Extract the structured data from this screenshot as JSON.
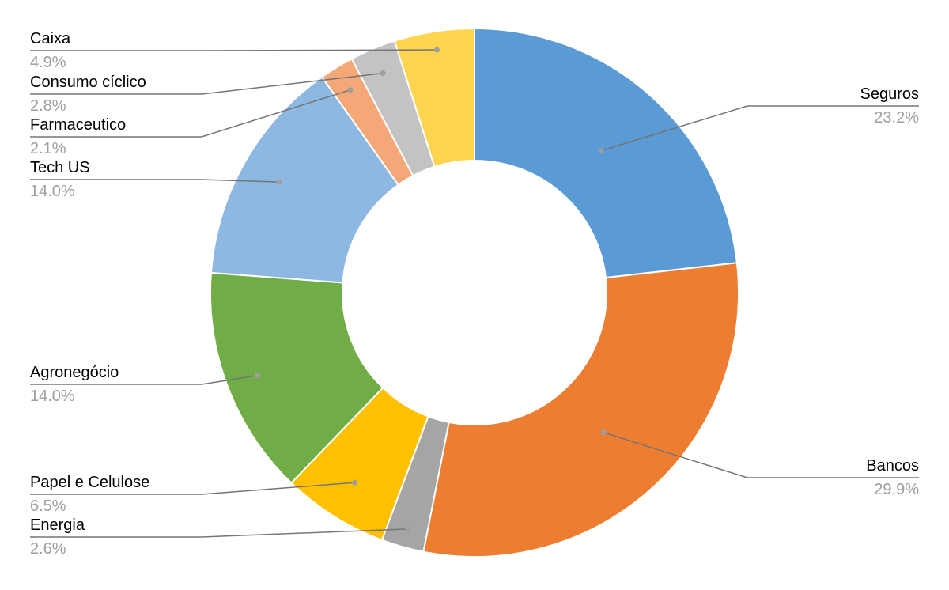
{
  "chart_data": {
    "type": "pie",
    "variant": "donut",
    "title": "",
    "start_angle_deg": 0,
    "direction": "clockwise",
    "legend": "none",
    "slices": [
      {
        "name": "Seguros",
        "value": 23.2,
        "label": "23.2%",
        "color": "#5b9bd5"
      },
      {
        "name": "Bancos",
        "value": 29.9,
        "label": "29.9%",
        "color": "#ed7d31"
      },
      {
        "name": "Energia",
        "value": 2.6,
        "label": "2.6%",
        "color": "#a5a5a5"
      },
      {
        "name": "Papel e Celulose",
        "value": 6.5,
        "label": "6.5%",
        "color": "#ffc000"
      },
      {
        "name": "Agronegócio",
        "value": 14.0,
        "label": "14.0%",
        "color": "#70ad47"
      },
      {
        "name": "Tech US",
        "value": 14.0,
        "label": "14.0%",
        "color": "#8db8e2"
      },
      {
        "name": "Farmaceutico",
        "value": 2.1,
        "label": "2.1%",
        "color": "#f4a877"
      },
      {
        "name": "Consumo cíclico",
        "value": 2.8,
        "label": "2.8%",
        "color": "#c3c3c3"
      },
      {
        "name": "Caixa",
        "value": 4.9,
        "label": "4.9%",
        "color": "#ffd54f"
      }
    ]
  }
}
